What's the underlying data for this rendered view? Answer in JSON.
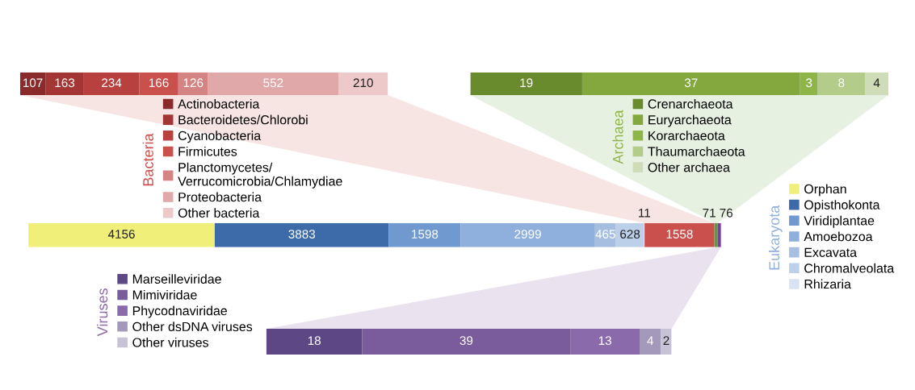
{
  "chart_data": [
    {
      "type": "bar",
      "orientation": "horizontal",
      "stacked": true,
      "data_labels": true,
      "legend": "bottom",
      "legend_title": "Bacteria",
      "categories": [
        null
      ],
      "series": [
        {
          "name": "Actinobacteria",
          "color": "#8b2a2a",
          "values": [
            107
          ]
        },
        {
          "name": "Bacteroidetes/Chlorobi",
          "color": "#a33535",
          "values": [
            163
          ]
        },
        {
          "name": "Cyanobacteria",
          "color": "#b8403e",
          "values": [
            234
          ]
        },
        {
          "name": "Firmicutes",
          "color": "#c9504d",
          "values": [
            166
          ]
        },
        {
          "name": "Planctomycetes/\nVerrucomicrobia/Chlamydiae",
          "color": "#d48583",
          "values": [
            126
          ]
        },
        {
          "name": "Proteobacteria",
          "color": "#e0a8a8",
          "values": [
            552
          ]
        },
        {
          "name": "Other bacteria",
          "color": "#edc9c9",
          "values": [
            210
          ]
        }
      ]
    },
    {
      "type": "bar",
      "orientation": "horizontal",
      "stacked": true,
      "data_labels": true,
      "legend": "bottom",
      "legend_title": "Archaea",
      "categories": [
        null
      ],
      "series": [
        {
          "name": "Crenarchaeota",
          "color": "#6a8a2e",
          "values": [
            19
          ]
        },
        {
          "name": "Euryarchaeota",
          "color": "#84a83e",
          "values": [
            37
          ]
        },
        {
          "name": "Korarchaeota",
          "color": "#8fb54a",
          "values": [
            3
          ]
        },
        {
          "name": "Thaumarchaeota",
          "color": "#b3cc8a",
          "values": [
            8
          ]
        },
        {
          "name": "Other archaea",
          "color": "#cfdcb8",
          "values": [
            4
          ]
        }
      ]
    },
    {
      "type": "bar",
      "orientation": "horizontal",
      "stacked": true,
      "data_labels": true,
      "legend": "right",
      "legend_title": "Eukaryota",
      "categories": [
        null
      ],
      "series": [
        {
          "name": "Orphan",
          "color": "#f0ef7a",
          "values": [
            4156
          ]
        },
        {
          "name": "Opisthokonta",
          "color": "#3d6aa8",
          "values": [
            3883
          ]
        },
        {
          "name": "Viridiplantae",
          "color": "#7099cf",
          "values": [
            1598
          ]
        },
        {
          "name": "Amoebozoa",
          "color": "#8fb0dc",
          "values": [
            2999
          ]
        },
        {
          "name": "Excavata",
          "color": "#a6bfe0",
          "values": [
            465
          ]
        },
        {
          "name": "Chromalveolata",
          "color": "#bcd0ea",
          "values": [
            628
          ]
        },
        {
          "name": "Rhizaria",
          "color": "#d8e4f3",
          "values": [
            11
          ]
        },
        {
          "color": "#c9504d",
          "values": [
            1558
          ]
        },
        {
          "color": "#5a9e3a",
          "values": [
            71
          ]
        },
        {
          "color": "#7a3e9a",
          "values": [
            76
          ]
        }
      ]
    },
    {
      "type": "bar",
      "orientation": "horizontal",
      "stacked": true,
      "data_labels": true,
      "legend": "left",
      "legend_title": "Viruses",
      "categories": [
        null
      ],
      "series": [
        {
          "name": "Marseilleviridae",
          "color": "#5e4785",
          "values": [
            18
          ]
        },
        {
          "name": "Mimiviridae",
          "color": "#7a5c9c",
          "values": [
            39
          ]
        },
        {
          "name": "Phycodnaviridae",
          "color": "#8a6aaa",
          "values": [
            13
          ]
        },
        {
          "name": "Other dsDNA viruses",
          "color": "#a599bb",
          "values": [
            4
          ]
        },
        {
          "name": "Other viruses",
          "color": "#c8c2d6",
          "values": [
            2
          ]
        }
      ]
    }
  ]
}
